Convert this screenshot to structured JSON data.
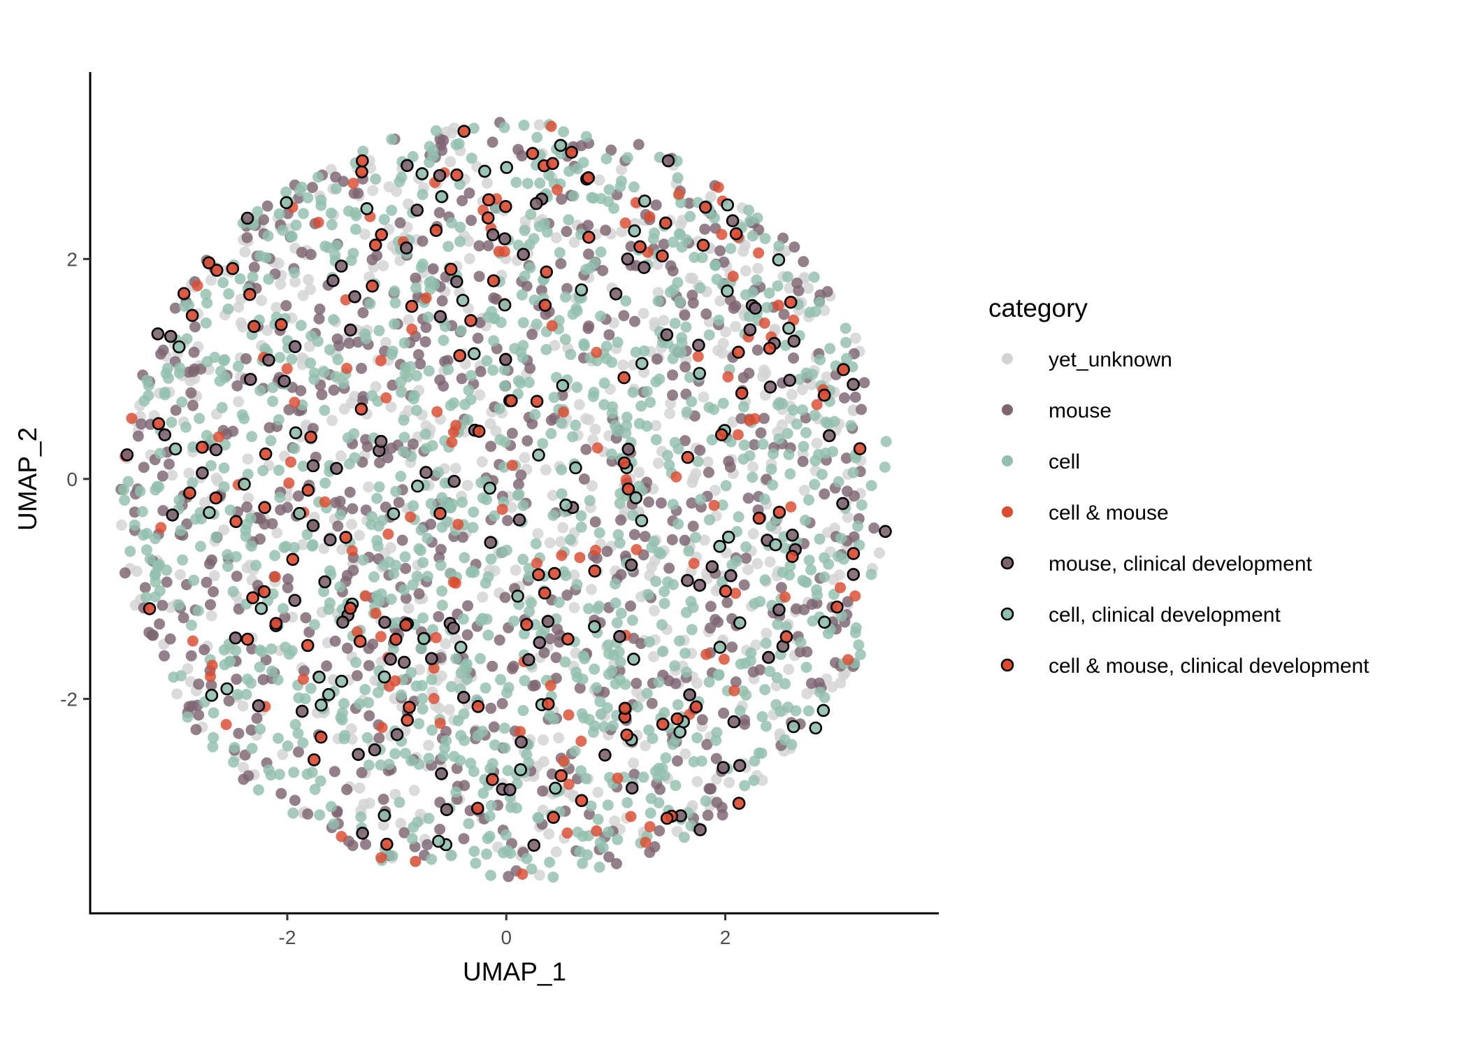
{
  "chart_data": {
    "type": "scatter",
    "xlabel": "UMAP_1",
    "ylabel": "UMAP_2",
    "xlim": [
      -3.8,
      3.95
    ],
    "ylim": [
      -3.95,
      3.7
    ],
    "xticks": [
      -2,
      0,
      2
    ],
    "yticks": [
      -2,
      0,
      2
    ],
    "xtick_labels": [
      "-2",
      "0",
      "2"
    ],
    "ytick_labels": [
      "-2",
      "0",
      "2"
    ],
    "grid": false,
    "legend": {
      "title": "category",
      "placement": "right"
    },
    "series": [
      {
        "name": "yet_unknown",
        "color": "#d3d3d3",
        "outlined": false,
        "count": 700
      },
      {
        "name": "mouse",
        "color": "#7d6470",
        "outlined": false,
        "count": 750
      },
      {
        "name": "cell",
        "color": "#92bfae",
        "outlined": false,
        "count": 1150
      },
      {
        "name": "cell & mouse",
        "color": "#dc4a30",
        "outlined": false,
        "count": 130
      },
      {
        "name": "mouse, clinical development",
        "color": "#7d6470",
        "outlined": true,
        "count": 110
      },
      {
        "name": "cell, clinical development",
        "color": "#92bfae",
        "outlined": true,
        "count": 70
      },
      {
        "name": "cell & mouse, clinical development",
        "color": "#dc4a30",
        "outlined": true,
        "count": 110
      }
    ],
    "cluster": {
      "center": [
        0.0,
        -0.2
      ],
      "radius_x": 3.55,
      "radius_y": 3.45
    }
  }
}
